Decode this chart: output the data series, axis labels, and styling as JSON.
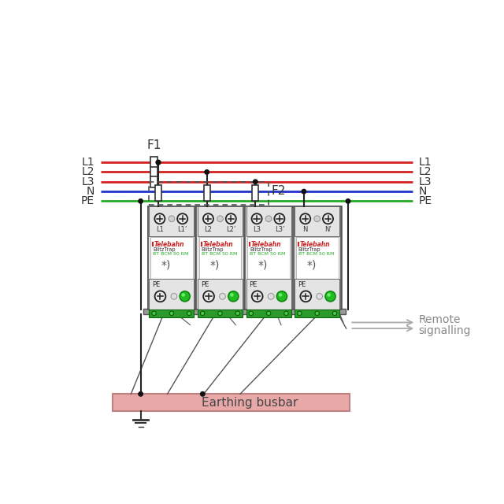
{
  "bg_color": "#ffffff",
  "wire_colors": [
    "#d42020",
    "#d42020",
    "#d42020",
    "#2233cc",
    "#22aa22"
  ],
  "wire_labels": [
    "L1",
    "L2",
    "L3",
    "N",
    "PE"
  ],
  "module_labels_top": [
    [
      "L1",
      "L1’"
    ],
    [
      "L2",
      "L2’"
    ],
    [
      "L3",
      "L3’"
    ],
    [
      "N",
      "N’"
    ]
  ],
  "brand_text": "♥Telebahn®",
  "model1": "BlitzTrap",
  "model2": "BT BCM 50 RM",
  "star_text": "*)",
  "pe_text": "PE",
  "F1_label": "F1",
  "F2_label": "F2",
  "device_gray": "#c8c8c8",
  "module_face": "#e4e4e4",
  "face_white": "#f5f5f5",
  "screw_face": "#e8e8e8",
  "green_led": "#22bb22",
  "green_terminal": "#2a9a2a",
  "earthing_fill": "#e8a8a8",
  "earthing_edge": "#c08080",
  "earthing_label": "Earthing busbar",
  "remote_label1": "Remote",
  "remote_label2": "signalling",
  "arrow_color": "#aaaaaa",
  "wire_lw": 2.0,
  "dot_color": "#111111"
}
